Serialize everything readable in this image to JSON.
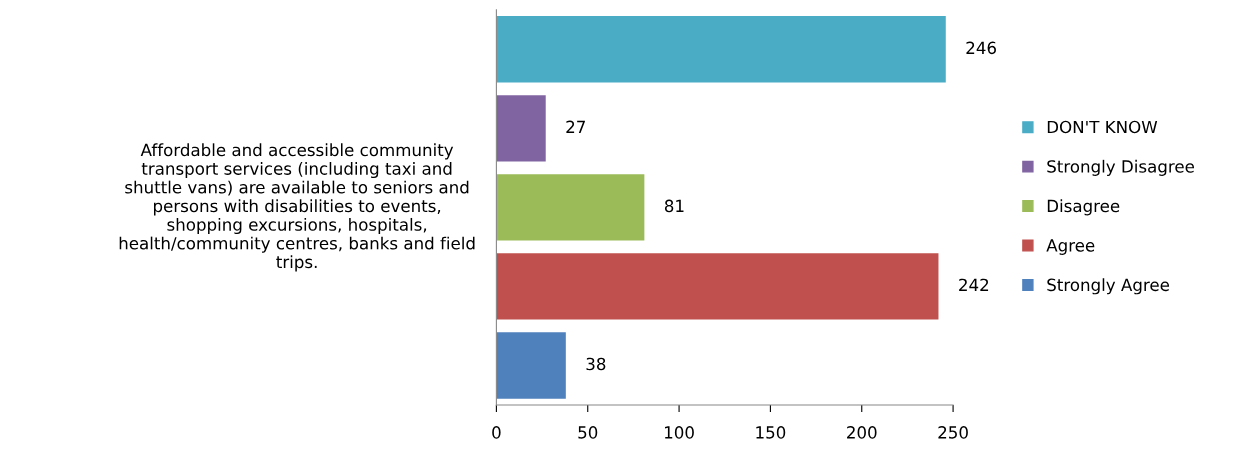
{
  "chart_data": {
    "type": "bar",
    "orientation": "horizontal",
    "stacked": true,
    "ylabel": "Affordable and accessible community\ntransport services (including taxi and\nshuttle vans) are available to seniors and\npersons with disabilities to events,\nshopping excursions, hospitals,\nhealth/community centres, banks and field\ntrips.",
    "categories": [
      null,
      null,
      null,
      null,
      null
    ],
    "series": [
      {
        "name": "DON'T KNOW",
        "color": "#4bacc6",
        "values": [
          246,
          null,
          null,
          null,
          null
        ]
      },
      {
        "name": "Strongly Disagree",
        "color": "#8064a2",
        "values": [
          null,
          27,
          null,
          null,
          null
        ]
      },
      {
        "name": "Disagree",
        "color": "#9bbb59",
        "values": [
          null,
          null,
          81,
          null,
          null
        ]
      },
      {
        "name": "Agree",
        "color": "#c0504d",
        "values": [
          null,
          null,
          null,
          242,
          null
        ]
      },
      {
        "name": "Strongly Agree",
        "color": "#4f81bd",
        "values": [
          null,
          null,
          null,
          null,
          38
        ]
      }
    ],
    "xlim": [
      0,
      250
    ],
    "xticks": [
      0,
      50,
      100,
      150,
      200,
      250
    ],
    "data_labels": true,
    "legend": "right",
    "grid": false
  }
}
